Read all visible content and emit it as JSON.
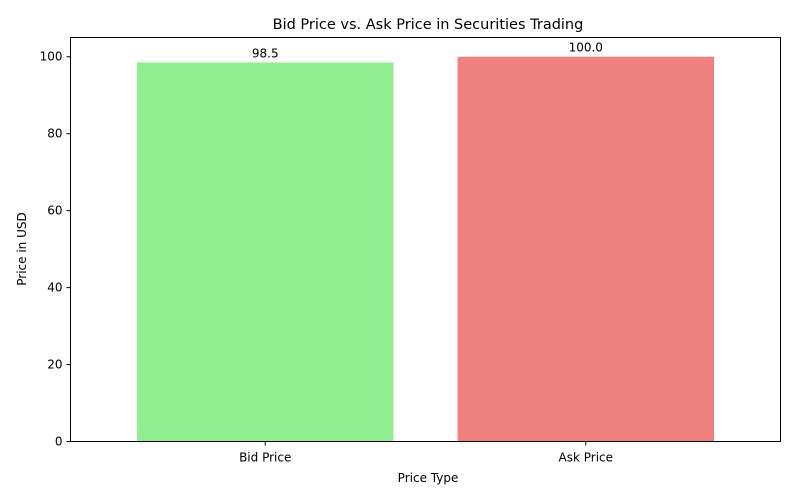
{
  "chart_data": {
    "type": "bar",
    "title": "Bid Price vs. Ask Price in Securities Trading",
    "xlabel": "Price Type",
    "ylabel": "Price in USD",
    "categories": [
      "Bid Price",
      "Ask Price"
    ],
    "values": [
      98.5,
      100.0
    ],
    "data_labels": [
      "98.5",
      "100.0"
    ],
    "colors": [
      "#90ee90",
      "#f08080"
    ],
    "ylim": [
      0,
      105
    ],
    "yticks": [
      0,
      20,
      40,
      60,
      80,
      100
    ],
    "ytick_labels": [
      "0",
      "20",
      "40",
      "60",
      "80",
      "100"
    ],
    "grid": false,
    "legend": "none"
  }
}
